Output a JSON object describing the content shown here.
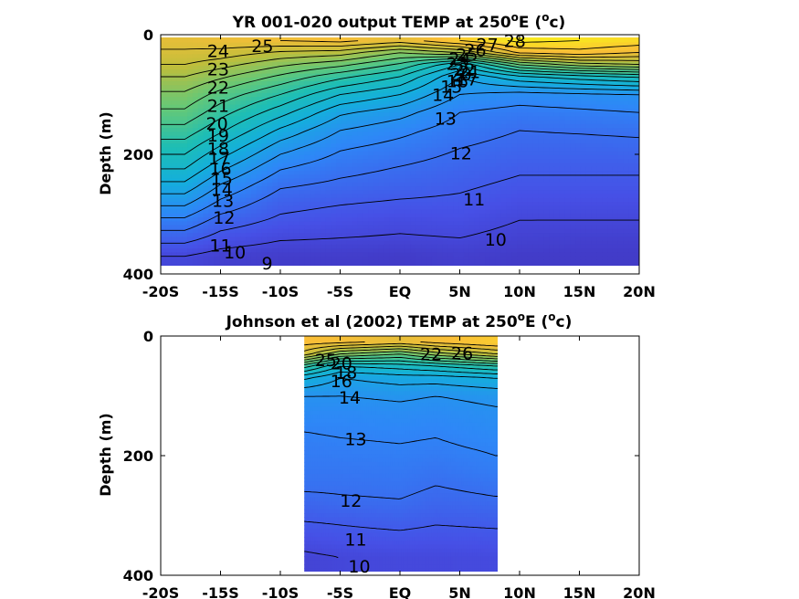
{
  "chart_data": [
    {
      "type": "contour",
      "title": "YR 001-020 output TEMP at 250",
      "title_suffix": "E (",
      "title_sup_deg": "o",
      "title_unit_tail": "c)",
      "ylabel": "Depth (m)",
      "x_ticks": [
        "-20S",
        "-15S",
        "-10S",
        "-5S",
        "EQ",
        "5N",
        "10N",
        "15N",
        "20N"
      ],
      "y_ticks": [
        "0",
        "200",
        "400"
      ],
      "xlim": [
        -20,
        20
      ],
      "ylim": [
        0,
        400
      ],
      "data_extent_lat": [
        -20,
        20
      ],
      "data_extent_depth": [
        0,
        390
      ],
      "colormap": "parula",
      "color_range_c": [
        8,
        29
      ],
      "contour_levels": [
        9,
        10,
        11,
        12,
        13,
        14,
        15,
        16,
        17,
        18,
        19,
        20,
        21,
        22,
        23,
        24,
        25,
        26,
        27,
        28
      ],
      "contour_labels": [
        {
          "value": "25",
          "lat": -11.5,
          "depth": 18
        },
        {
          "value": "24",
          "lat": -15.2,
          "depth": 27
        },
        {
          "value": "23",
          "lat": -15.2,
          "depth": 57
        },
        {
          "value": "22",
          "lat": -15.2,
          "depth": 88
        },
        {
          "value": "21",
          "lat": -15.2,
          "depth": 118
        },
        {
          "value": "20",
          "lat": -15.3,
          "depth": 148
        },
        {
          "value": "19",
          "lat": -15.2,
          "depth": 168
        },
        {
          "value": "18",
          "lat": -15.2,
          "depth": 190
        },
        {
          "value": "17",
          "lat": -15.1,
          "depth": 206
        },
        {
          "value": "16",
          "lat": -15.0,
          "depth": 224
        },
        {
          "value": "15",
          "lat": -14.9,
          "depth": 240
        },
        {
          "value": "14",
          "lat": -14.9,
          "depth": 258
        },
        {
          "value": "13",
          "lat": -14.8,
          "depth": 277
        },
        {
          "value": "12",
          "lat": -14.7,
          "depth": 305
        },
        {
          "value": "11",
          "lat": -15.0,
          "depth": 352
        },
        {
          "value": "10",
          "lat": -13.8,
          "depth": 363
        },
        {
          "value": "9",
          "lat": -11.1,
          "depth": 382
        },
        {
          "value": "28",
          "lat": 9.6,
          "depth": 10
        },
        {
          "value": "27",
          "lat": 7.3,
          "depth": 16
        },
        {
          "value": "26",
          "lat": 6.3,
          "depth": 25
        },
        {
          "value": "25",
          "lat": 5.6,
          "depth": 33
        },
        {
          "value": "24",
          "lat": 5.0,
          "depth": 40
        },
        {
          "value": "23",
          "lat": 4.8,
          "depth": 48
        },
        {
          "value": "22",
          "lat": 5.4,
          "depth": 58
        },
        {
          "value": "21",
          "lat": 5.8,
          "depth": 62
        },
        {
          "value": "20",
          "lat": 5.1,
          "depth": 66
        },
        {
          "value": "17",
          "lat": 5.6,
          "depth": 74
        },
        {
          "value": "16",
          "lat": 4.8,
          "depth": 77
        },
        {
          "value": "15",
          "lat": 4.3,
          "depth": 86
        },
        {
          "value": "14",
          "lat": 3.6,
          "depth": 100
        },
        {
          "value": "13",
          "lat": 3.8,
          "depth": 140
        },
        {
          "value": "12",
          "lat": 5.1,
          "depth": 198
        },
        {
          "value": "11",
          "lat": 6.2,
          "depth": 275
        },
        {
          "value": "10",
          "lat": 8.0,
          "depth": 342
        }
      ],
      "depth_samples_m": [
        10,
        30,
        50,
        70,
        100,
        130,
        160,
        190,
        220,
        250,
        280,
        310,
        340,
        370
      ],
      "sections": [
        {
          "lat": -18,
          "temp_c": [
            25.5,
            24.8,
            24.0,
            23.0,
            21.8,
            20.8,
            19.6,
            18.4,
            17.2,
            15.8,
            14.3,
            12.8,
            11.4,
            10.0
          ]
        },
        {
          "lat": -15,
          "temp_c": [
            25.8,
            24.6,
            23.4,
            22.2,
            20.6,
            19.4,
            18.2,
            16.8,
            15.4,
            14.0,
            12.8,
            11.6,
            10.6,
            9.6
          ]
        },
        {
          "lat": -10,
          "temp_c": [
            26.0,
            23.8,
            22.2,
            20.8,
            19.0,
            17.4,
            15.8,
            14.4,
            13.2,
            12.2,
            11.4,
            10.8,
            10.1,
            9.4
          ]
        },
        {
          "lat": -5,
          "temp_c": [
            26.3,
            23.5,
            21.3,
            19.3,
            17.0,
            15.2,
            14.0,
            13.1,
            12.4,
            11.8,
            11.1,
            10.5,
            10.0,
            9.4
          ]
        },
        {
          "lat": 0,
          "temp_c": [
            25.5,
            22.0,
            19.8,
            18.0,
            16.0,
            14.4,
            13.3,
            12.6,
            12.0,
            11.5,
            10.9,
            10.3,
            9.9,
            9.3
          ]
        },
        {
          "lat": 5,
          "temp_c": [
            27.0,
            23.0,
            17.0,
            15.0,
            14.0,
            13.0,
            12.5,
            12.0,
            11.6,
            11.2,
            10.8,
            10.4,
            10.0,
            9.5
          ]
        },
        {
          "lat": 10,
          "temp_c": [
            28.3,
            26.2,
            21.0,
            16.8,
            13.6,
            12.6,
            12.0,
            11.6,
            11.2,
            10.8,
            10.4,
            10.0,
            9.7,
            9.3
          ]
        },
        {
          "lat": 15,
          "temp_c": [
            28.0,
            26.6,
            22.5,
            17.6,
            13.8,
            12.8,
            12.1,
            11.6,
            11.2,
            10.8,
            10.4,
            10.0,
            9.6,
            9.3
          ]
        },
        {
          "lat": 20,
          "temp_c": [
            27.6,
            26.0,
            23.0,
            18.2,
            14.0,
            13.0,
            12.2,
            11.7,
            11.2,
            10.8,
            10.4,
            10.0,
            9.6,
            9.3
          ]
        }
      ]
    },
    {
      "type": "contour",
      "title": "Johnson et al (2002) TEMP at 250",
      "title_suffix": "E (",
      "title_sup_deg": "o",
      "title_unit_tail": "c)",
      "ylabel": "Depth (m)",
      "x_ticks": [
        "-20S",
        "-15S",
        "-10S",
        "-5S",
        "EQ",
        "5N",
        "10N",
        "15N",
        "20N"
      ],
      "y_ticks": [
        "0",
        "200",
        "400"
      ],
      "xlim": [
        -20,
        20
      ],
      "ylim": [
        0,
        400
      ],
      "data_extent_lat": [
        -8,
        8.2
      ],
      "data_extent_depth": [
        0,
        395
      ],
      "colormap": "parula",
      "color_range_c": [
        8,
        29
      ],
      "contour_levels": [
        10,
        11,
        12,
        13,
        14,
        15,
        16,
        17,
        18,
        19,
        20,
        21,
        22,
        23,
        24,
        25,
        26
      ],
      "contour_labels": [
        {
          "value": "25",
          "lat": -6.2,
          "depth": 40
        },
        {
          "value": "26",
          "lat": 5.2,
          "depth": 28
        },
        {
          "value": "22",
          "lat": 2.6,
          "depth": 30
        },
        {
          "value": "20",
          "lat": -4.9,
          "depth": 45
        },
        {
          "value": "18",
          "lat": -4.5,
          "depth": 60
        },
        {
          "value": "16",
          "lat": -4.9,
          "depth": 75
        },
        {
          "value": "14",
          "lat": -4.2,
          "depth": 102
        },
        {
          "value": "13",
          "lat": -3.7,
          "depth": 172
        },
        {
          "value": "12",
          "lat": -4.1,
          "depth": 275
        },
        {
          "value": "11",
          "lat": -3.7,
          "depth": 340
        },
        {
          "value": "10",
          "lat": -3.4,
          "depth": 385
        }
      ],
      "depth_samples_m": [
        10,
        30,
        50,
        70,
        100,
        130,
        160,
        190,
        220,
        250,
        280,
        310,
        340,
        370
      ],
      "sections": [
        {
          "lat": -8,
          "temp_c": [
            26.5,
            24.5,
            19.5,
            16.2,
            14.0,
            13.5,
            13.0,
            12.7,
            12.5,
            12.2,
            11.6,
            11.0,
            10.4,
            9.8
          ]
        },
        {
          "lat": -5,
          "temp_c": [
            26.3,
            22.0,
            17.0,
            15.0,
            14.0,
            13.4,
            13.1,
            12.8,
            12.5,
            12.2,
            11.8,
            11.1,
            10.6,
            10.0
          ]
        },
        {
          "lat": 0,
          "temp_c": [
            25.6,
            21.0,
            17.5,
            15.5,
            14.2,
            13.6,
            13.2,
            12.9,
            12.6,
            12.3,
            11.9,
            11.3,
            10.7,
            10.1
          ]
        },
        {
          "lat": 3,
          "temp_c": [
            26.3,
            22.5,
            18.0,
            15.5,
            14.0,
            13.5,
            13.1,
            12.8,
            12.4,
            12.0,
            11.6,
            11.1,
            10.6,
            10.1
          ]
        },
        {
          "lat": 8,
          "temp_c": [
            27.0,
            24.0,
            19.0,
            16.0,
            14.3,
            13.8,
            13.5,
            13.1,
            12.8,
            12.3,
            11.8,
            11.2,
            10.7,
            10.2
          ]
        }
      ]
    }
  ]
}
